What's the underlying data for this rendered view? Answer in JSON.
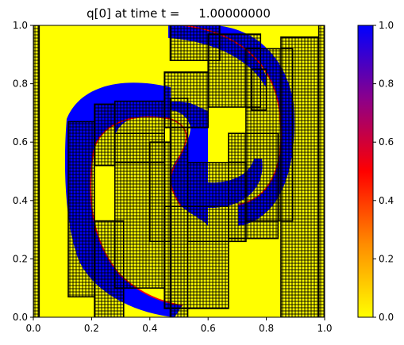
{
  "chart_data": {
    "type": "heatmap",
    "title": "q[0] at time t =     1.00000000",
    "xlabel": "",
    "ylabel": "",
    "xlim": [
      0.0,
      1.0
    ],
    "ylim": [
      0.0,
      1.0
    ],
    "x_ticks": [
      "0.0",
      "0.2",
      "0.4",
      "0.6",
      "0.8",
      "1.0"
    ],
    "y_ticks": [
      "0.0",
      "0.2",
      "0.4",
      "0.6",
      "0.8",
      "1.0"
    ],
    "colorbar": {
      "range": [
        0.0,
        1.0
      ],
      "ticks": [
        "0.0",
        "0.2",
        "0.4",
        "0.6",
        "0.8",
        "1.0"
      ],
      "colormap": [
        "#ffff00",
        "#ff8c00",
        "#ff0000",
        "#8b008b",
        "#0000ff"
      ]
    },
    "field": {
      "description_values": "q near 1 (blue) in outer spiral arm and inner region; q near 0 (yellow) elsewhere",
      "spiral_center": [
        0.45,
        0.48
      ],
      "high_value_color": "#0000ff",
      "low_value_color": "#ffff00",
      "interface_color": "#ff0000"
    },
    "amr_patches": [
      [
        0.0,
        0.0,
        0.02,
        1.0
      ],
      [
        0.98,
        0.0,
        1.0,
        1.0
      ],
      [
        0.12,
        0.07,
        0.21,
        0.67
      ],
      [
        0.21,
        0.0,
        0.31,
        0.33
      ],
      [
        0.28,
        0.1,
        0.45,
        0.63
      ],
      [
        0.21,
        0.52,
        0.28,
        0.73
      ],
      [
        0.28,
        0.53,
        0.45,
        0.74
      ],
      [
        0.4,
        0.26,
        0.47,
        0.6
      ],
      [
        0.47,
        0.0,
        0.53,
        0.75
      ],
      [
        0.45,
        0.03,
        0.67,
        0.38
      ],
      [
        0.53,
        0.26,
        0.73,
        0.53
      ],
      [
        0.67,
        0.27,
        0.84,
        0.63
      ],
      [
        0.73,
        0.33,
        0.89,
        0.92
      ],
      [
        0.85,
        0.0,
        0.98,
        0.96
      ],
      [
        0.45,
        0.65,
        0.6,
        0.84
      ],
      [
        0.6,
        0.72,
        0.78,
        0.97
      ],
      [
        0.75,
        0.71,
        0.8,
        0.85
      ],
      [
        0.47,
        0.88,
        0.64,
        1.0
      ]
    ]
  }
}
